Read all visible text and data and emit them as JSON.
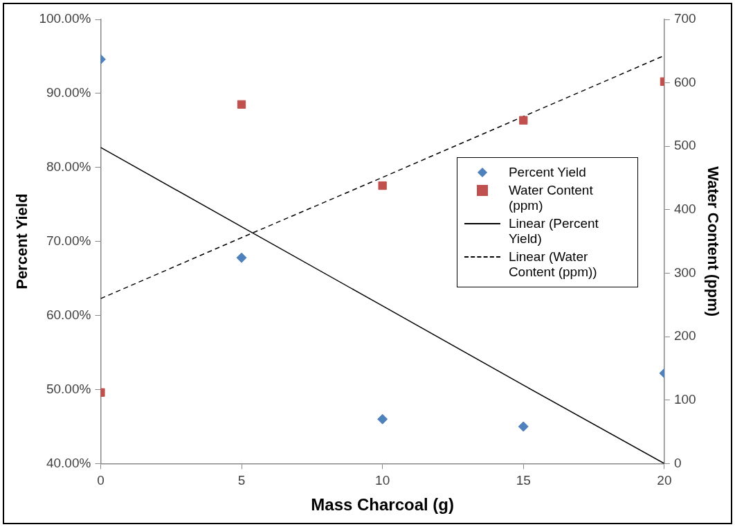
{
  "chart_data": {
    "type": "scatter",
    "xlabel": "Mass Charcoal (g)",
    "ylabel": "Percent Yield",
    "y2label": "Water Content (ppm)",
    "x": [
      0,
      5,
      10,
      15,
      20
    ],
    "series": [
      {
        "name": "Percent Yield",
        "color": "#4f81bd",
        "marker": "diamond",
        "values": [
          94.6,
          67.8,
          46.0,
          45.0,
          52.2
        ]
      },
      {
        "name": "Water Content (ppm)",
        "color": "#c0504d",
        "marker": "square",
        "axis": "y2",
        "values": [
          112,
          566,
          438,
          541,
          602
        ]
      },
      {
        "name": "Linear (Percent Yield)",
        "type": "line",
        "color": "#000000",
        "marker": "none",
        "line_style": "solid",
        "values": [
          82.7,
          72.0,
          61.3,
          50.6,
          40.0
        ]
      },
      {
        "name": "Linear (Water Content (ppm))",
        "type": "line",
        "color": "#000000",
        "marker": "none",
        "line_style": "dashed",
        "axis": "y2",
        "values": [
          260,
          356,
          451,
          547,
          643
        ]
      }
    ],
    "xlim": [
      0,
      20
    ],
    "xticks": [
      0,
      5,
      10,
      15,
      20
    ],
    "ylim": [
      40,
      100
    ],
    "yticks": [
      {
        "value": 40,
        "label": "40.00%"
      },
      {
        "value": 50,
        "label": "50.00%"
      },
      {
        "value": 60,
        "label": "60.00%"
      },
      {
        "value": 70,
        "label": "70.00%"
      },
      {
        "value": 80,
        "label": "80.00%"
      },
      {
        "value": 90,
        "label": "90.00%"
      },
      {
        "value": 100,
        "label": "100.00%"
      }
    ],
    "y2lim": [
      0,
      700
    ],
    "y2ticks": [
      0,
      100,
      200,
      300,
      400,
      500,
      600,
      700
    ],
    "grid": false,
    "legend": "right"
  }
}
